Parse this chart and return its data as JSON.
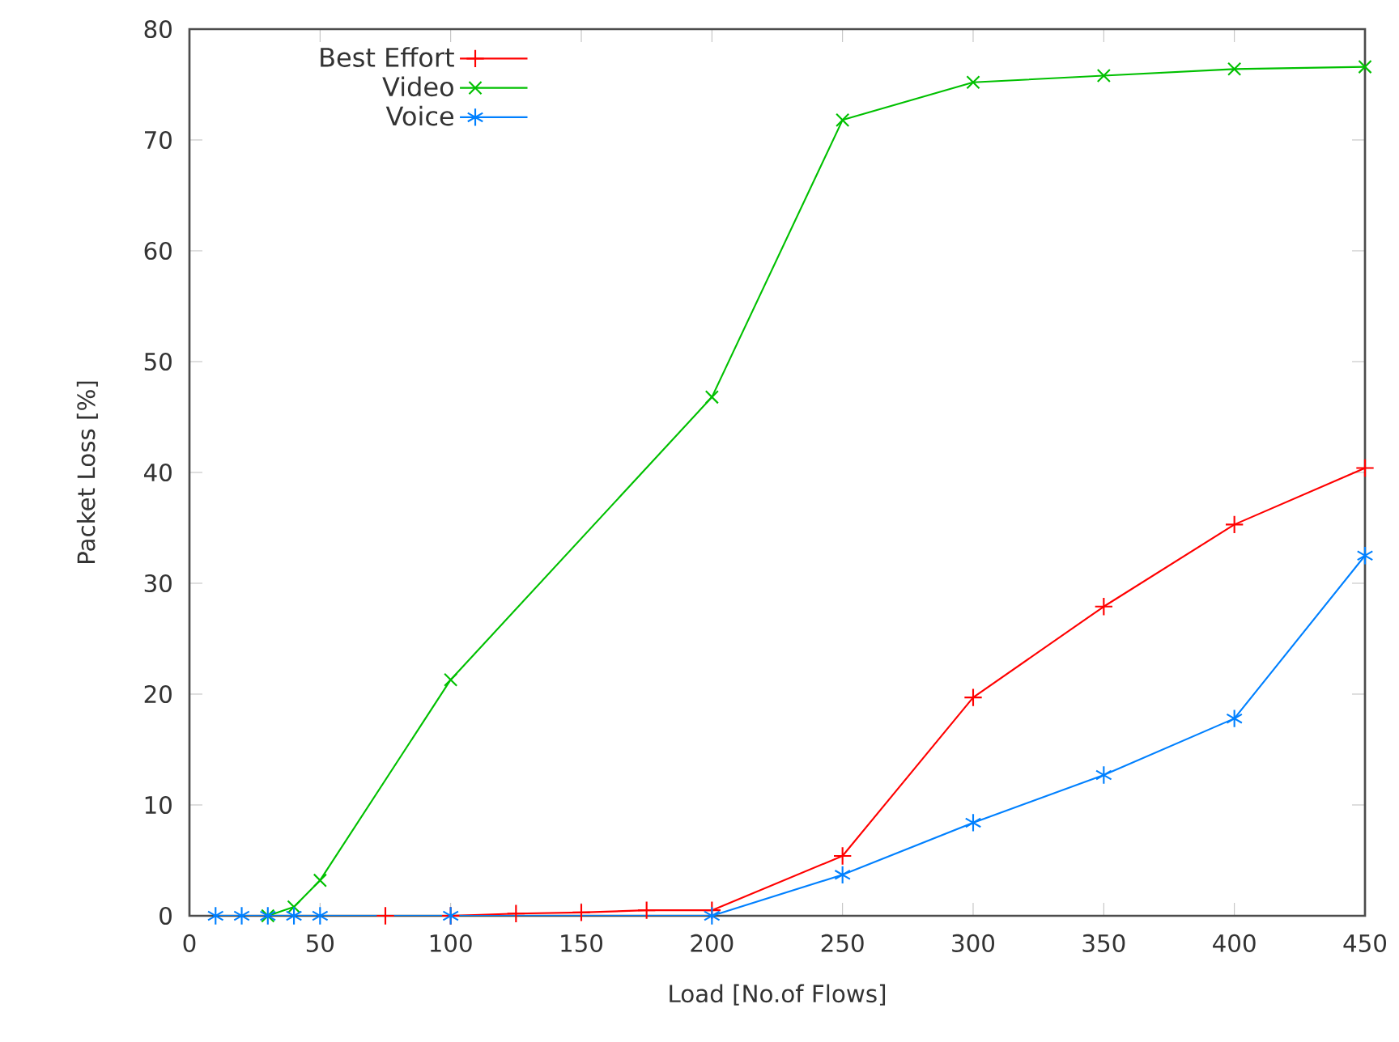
{
  "chart_data": {
    "type": "line",
    "xlabel": "Load [No.of Flows]",
    "ylabel": "Packet Loss [%]",
    "xlim": [
      0,
      450
    ],
    "ylim": [
      0,
      80
    ],
    "xticks": [
      0,
      50,
      100,
      150,
      200,
      250,
      300,
      350,
      400,
      450
    ],
    "yticks": [
      0,
      10,
      20,
      30,
      40,
      50,
      60,
      70,
      80
    ],
    "legend": "top left",
    "grid": false,
    "line_style": "solid",
    "series": [
      {
        "name": "Best Effort",
        "color": "#ff0000",
        "marker": "plus",
        "x": [
          75,
          100,
          125,
          150,
          175,
          200,
          250,
          300,
          350,
          400,
          450
        ],
        "values": [
          0,
          0,
          0.2,
          0.3,
          0.5,
          0.5,
          5.4,
          19.7,
          27.9,
          35.3,
          40.4
        ]
      },
      {
        "name": "Video",
        "color": "#00c000",
        "marker": "cross",
        "x": [
          30,
          40,
          50,
          100,
          200,
          250,
          300,
          350,
          400,
          450
        ],
        "values": [
          0,
          0.8,
          3.2,
          21.3,
          46.8,
          71.8,
          75.2,
          75.8,
          76.4,
          76.6
        ]
      },
      {
        "name": "Voice",
        "color": "#0080ff",
        "marker": "cross",
        "x": [
          10,
          20,
          30,
          40,
          50,
          100,
          200,
          250,
          300,
          350,
          400,
          450
        ],
        "values": [
          0,
          0,
          0,
          0,
          0,
          0,
          0,
          3.7,
          8.4,
          12.7,
          17.8,
          32.5
        ]
      }
    ]
  }
}
